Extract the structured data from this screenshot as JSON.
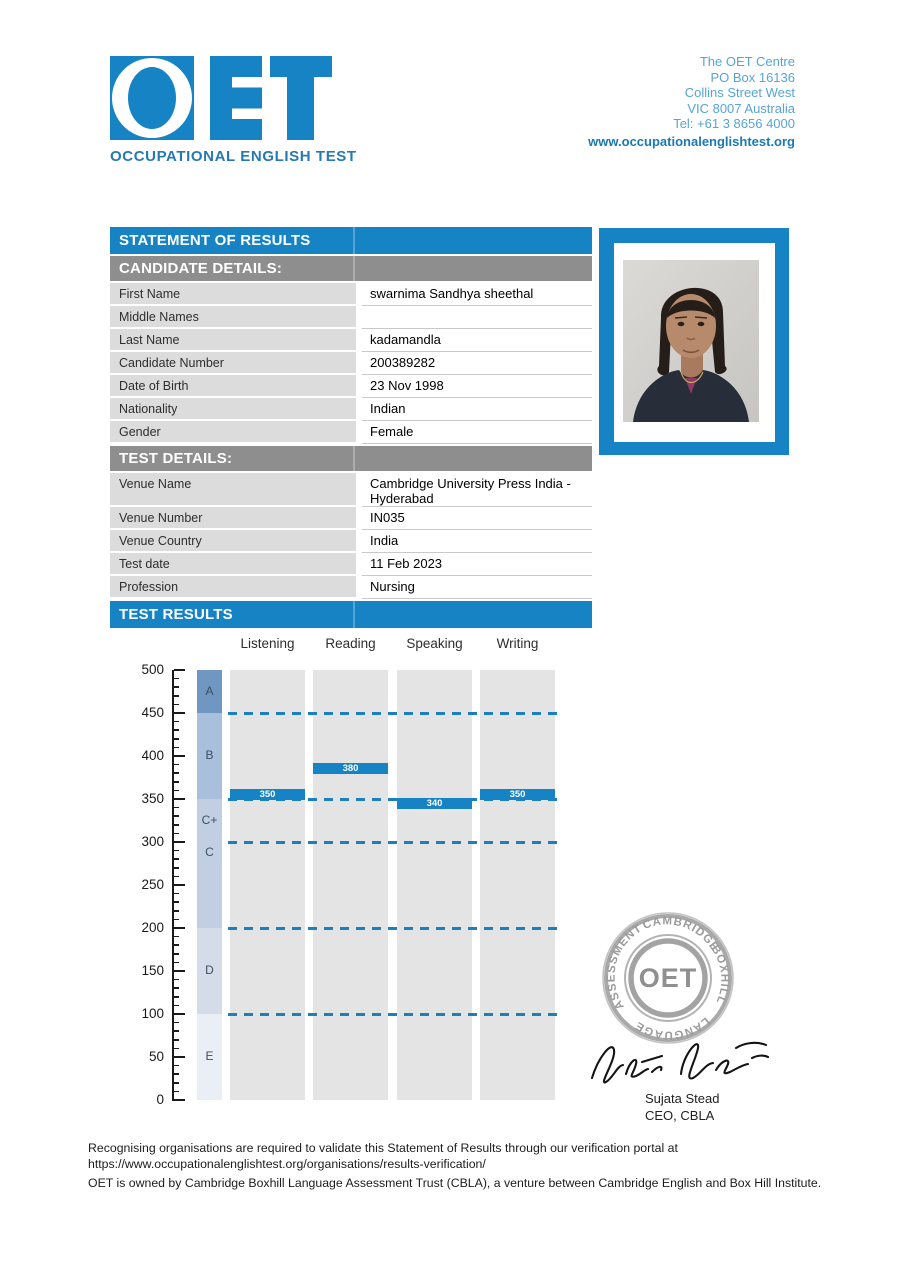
{
  "logo": {
    "brand": "OET",
    "tagline": "OCCUPATIONAL ENGLISH TEST"
  },
  "contact": {
    "lines": [
      "The OET Centre",
      "PO Box 16136",
      "Collins Street West",
      "VIC 8007 Australia",
      "Tel: +61 3 8656 4000"
    ],
    "website": "www.occupationalenglishtest.org"
  },
  "sections": {
    "statement": "STATEMENT OF RESULTS",
    "candidate": "CANDIDATE DETAILS:",
    "test": "TEST DETAILS:",
    "results": "TEST RESULTS"
  },
  "candidate_rows": [
    {
      "label": "First Name",
      "value": "swarnima Sandhya sheethal"
    },
    {
      "label": "Middle Names",
      "value": ""
    },
    {
      "label": "Last Name",
      "value": "kadamandla"
    },
    {
      "label": "Candidate Number",
      "value": "200389282"
    },
    {
      "label": "Date of Birth",
      "value": "23 Nov 1998"
    },
    {
      "label": "Nationality",
      "value": "Indian"
    },
    {
      "label": "Gender",
      "value": "Female"
    }
  ],
  "test_rows": [
    {
      "label": "Venue Name",
      "value": "Cambridge University Press India - Hyderabad"
    },
    {
      "label": "Venue Number",
      "value": "IN035"
    },
    {
      "label": "Venue Country",
      "value": "India"
    },
    {
      "label": "Test date",
      "value": "11 Feb 2023"
    },
    {
      "label": "Profession",
      "value": "Nursing"
    }
  ],
  "chart_data": {
    "type": "bar",
    "title": "TEST RESULTS",
    "categories": [
      "Listening",
      "Reading",
      "Speaking",
      "Writing"
    ],
    "values": [
      350,
      380,
      340,
      350
    ],
    "ylim": [
      0,
      500
    ],
    "ytick_step": 50,
    "minor_tick_step": 10,
    "grade_boundaries": [
      450,
      350,
      300,
      200,
      100
    ],
    "bands": [
      {
        "label": "A",
        "from": 450,
        "to": 500,
        "color": "#6f97c1"
      },
      {
        "label": "B",
        "from": 350,
        "to": 450,
        "color": "#a8c0db"
      },
      {
        "label": "C+",
        "from": 300,
        "to": 350,
        "color": "#c2cfe3"
      },
      {
        "label": "C",
        "from": 200,
        "to": 300,
        "color": "#c2cfe3",
        "label_at": 287
      },
      {
        "label": "D",
        "from": 100,
        "to": 200,
        "color": "#d4dcea"
      },
      {
        "label": "E",
        "from": 0,
        "to": 100,
        "color": "#eaeef5"
      }
    ],
    "bar_color": "#1583c4",
    "column_bg": "#e4e4e4",
    "dash_color": "#1e7fbe",
    "legend_position": "none",
    "grid": "dashed-boundaries-only"
  },
  "stamp": {
    "words": [
      "ASSESSMENT",
      "CAMBRIDGE",
      "BOXHILL",
      "LANGUAGE"
    ],
    "center": "OET"
  },
  "signatory": {
    "name": "Sujata Stead",
    "title": "CEO, CBLA"
  },
  "footer": {
    "line1": "Recognising organisations are required to validate this Statement of Results through our verification portal at",
    "line2": "https://www.occupationalenglishtest.org/organisations/results-verification/",
    "line3": "OET is owned by Cambridge Boxhill Language Assessment Trust (CBLA), a venture between Cambridge English and Box Hill Institute."
  },
  "colors": {
    "primary_blue": "#1583c4",
    "header_gray": "#8e8e8e",
    "label_bg": "#dcdcdc"
  }
}
